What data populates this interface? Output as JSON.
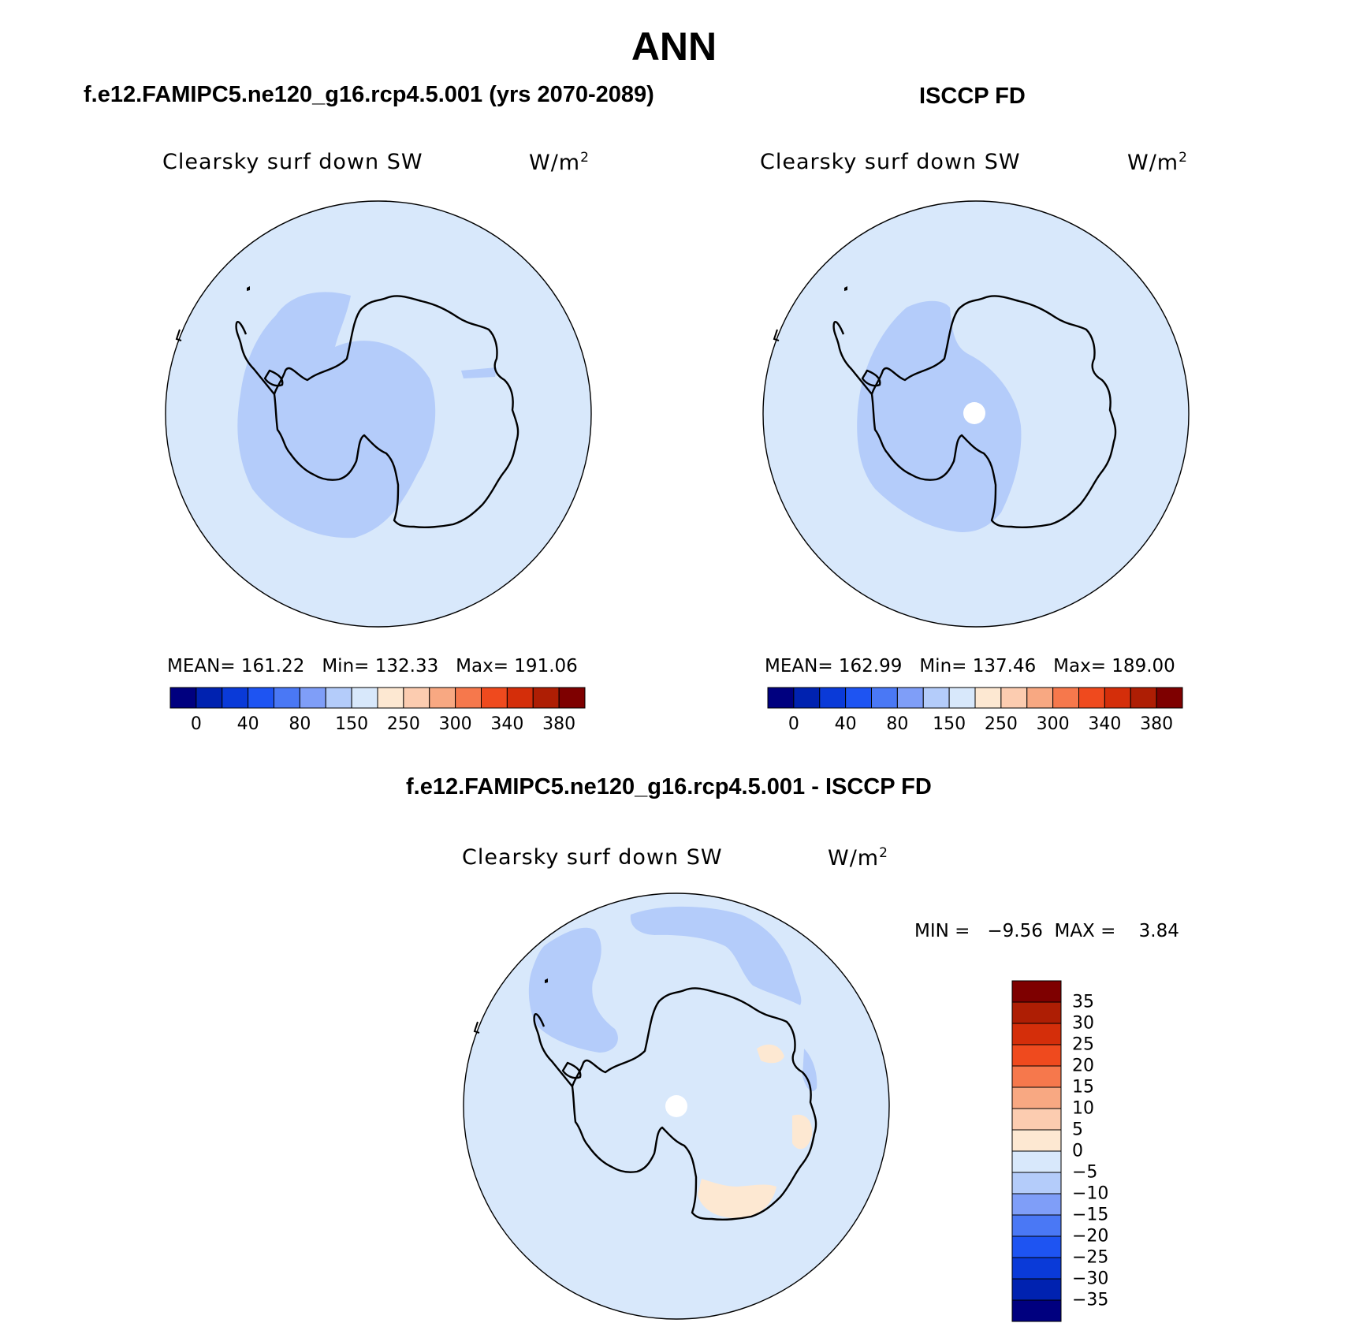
{
  "figure": {
    "title": "ANN"
  },
  "panels": [
    {
      "title": "f.e12.FAMIPC5.ne120_g16.rcp4.5.001 (yrs 2070-2089)",
      "variable": "Clearsky surf down SW",
      "unit": "W/m",
      "unit_exp": "2",
      "stats": {
        "mean_label": "MEAN=",
        "mean": "161.22",
        "min_label": "Min=",
        "min": "132.33",
        "max_label": "Max=",
        "max": "191.06"
      }
    },
    {
      "title": "ISCCP FD",
      "variable": "Clearsky surf down SW",
      "unit": "W/m",
      "unit_exp": "2",
      "stats": {
        "mean_label": "MEAN=",
        "mean": "162.99",
        "min_label": "Min=",
        "min": "137.46",
        "max_label": "Max=",
        "max": "189.00"
      }
    },
    {
      "title": "f.e12.FAMIPC5.ne120_g16.rcp4.5.001 - ISCCP FD",
      "variable": "Clearsky surf down SW",
      "unit": "W/m",
      "unit_exp": "2",
      "stats": {
        "min_label": "MIN =",
        "min": "−9.56",
        "max_label": "MAX =",
        "max": "3.84"
      }
    }
  ],
  "colorbar_abs": {
    "colors": [
      "#00007f",
      "#0022b0",
      "#0a3ad8",
      "#1e54f2",
      "#4a78f5",
      "#7f9ef8",
      "#b4ccfa",
      "#d8e8fb",
      "#fde8d2",
      "#fcccb0",
      "#f8a882",
      "#f6784c",
      "#ef4a1e",
      "#d42e0a",
      "#ae1e04",
      "#7e0000"
    ],
    "tick_labels": [
      "0",
      "40",
      "80",
      "150",
      "250",
      "300",
      "340",
      "380"
    ]
  },
  "colorbar_diff": {
    "colors_top_to_bottom": [
      "#7e0000",
      "#ae1e04",
      "#d42e0a",
      "#ef4a1e",
      "#f6784c",
      "#f8a882",
      "#fcccb0",
      "#fde8d2",
      "#d8e8fb",
      "#b4ccfa",
      "#7f9ef8",
      "#4a78f5",
      "#1e54f2",
      "#0a3ad8",
      "#0022b0",
      "#00007f"
    ],
    "tick_labels": [
      "35",
      "30",
      "25",
      "20",
      "15",
      "10",
      "5",
      "0",
      "−5",
      "−10",
      "−15",
      "−20",
      "−25",
      "−30",
      "−35"
    ]
  },
  "map_colors": {
    "background": "#d8e8fb",
    "low": "#b4ccfa",
    "positive": "#fde8d2",
    "missing": "#ffffff",
    "coast": "#000000"
  }
}
